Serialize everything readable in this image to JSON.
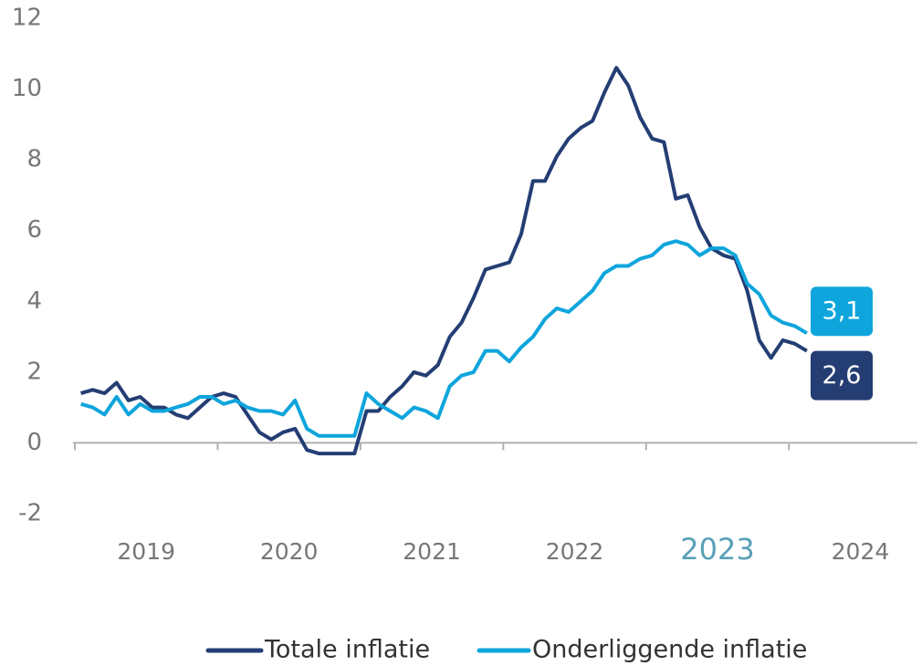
{
  "chart_data": {
    "type": "line",
    "x": [
      2019.042,
      2019.125,
      2019.208,
      2019.292,
      2019.375,
      2019.458,
      2019.542,
      2019.625,
      2019.708,
      2019.792,
      2019.875,
      2019.958,
      2020.042,
      2020.125,
      2020.208,
      2020.292,
      2020.375,
      2020.458,
      2020.542,
      2020.625,
      2020.708,
      2020.792,
      2020.875,
      2020.958,
      2021.042,
      2021.125,
      2021.208,
      2021.292,
      2021.375,
      2021.458,
      2021.542,
      2021.625,
      2021.708,
      2021.792,
      2021.875,
      2021.958,
      2022.042,
      2022.125,
      2022.208,
      2022.292,
      2022.375,
      2022.458,
      2022.542,
      2022.625,
      2022.708,
      2022.792,
      2022.875,
      2022.958,
      2023.042,
      2023.125,
      2023.208,
      2023.292,
      2023.375,
      2023.458,
      2023.542,
      2023.625,
      2023.708,
      2023.792,
      2023.875,
      2023.958,
      2024.042,
      2024.125
    ],
    "series": [
      {
        "name": "Totale inflatie",
        "color": "#243e74",
        "values": [
          1.4,
          1.5,
          1.4,
          1.7,
          1.2,
          1.3,
          1.0,
          1.0,
          0.8,
          0.7,
          1.0,
          1.3,
          1.4,
          1.3,
          0.8,
          0.3,
          0.1,
          0.3,
          0.4,
          -0.2,
          -0.3,
          -0.3,
          -0.3,
          -0.3,
          0.9,
          0.9,
          1.3,
          1.6,
          2.0,
          1.9,
          2.2,
          3.0,
          3.4,
          4.1,
          4.9,
          5.0,
          5.1,
          5.9,
          7.4,
          7.4,
          8.1,
          8.6,
          8.9,
          9.1,
          9.9,
          10.6,
          10.1,
          9.2,
          8.6,
          8.5,
          6.9,
          7.0,
          6.1,
          5.5,
          5.3,
          5.2,
          4.3,
          2.9,
          2.4,
          2.9,
          2.8,
          2.6
        ],
        "value_labels": [
          null,
          null,
          null,
          null,
          null,
          null,
          null,
          null,
          null,
          null,
          null,
          null,
          null,
          null,
          null,
          null,
          null,
          null,
          null,
          null,
          null,
          null,
          null,
          null,
          null,
          null,
          null,
          null,
          null,
          null,
          null,
          null,
          null,
          null,
          null,
          null,
          null,
          null,
          null,
          null,
          null,
          null,
          null,
          null,
          null,
          null,
          null,
          null,
          null,
          null,
          null,
          null,
          null,
          null,
          null,
          null,
          null,
          null,
          null,
          null,
          null,
          "2,6"
        ]
      },
      {
        "name": "Onderliggende inflatie",
        "color": "#0ea5dc",
        "values": [
          1.1,
          1.0,
          0.8,
          1.3,
          0.8,
          1.1,
          0.9,
          0.9,
          1.0,
          1.1,
          1.3,
          1.3,
          1.1,
          1.2,
          1.0,
          0.9,
          0.9,
          0.8,
          1.2,
          0.4,
          0.2,
          0.2,
          0.2,
          0.2,
          1.4,
          1.1,
          0.9,
          0.7,
          1.0,
          0.9,
          0.7,
          1.6,
          1.9,
          2.0,
          2.6,
          2.6,
          2.3,
          2.7,
          3.0,
          3.5,
          3.8,
          3.7,
          4.0,
          4.3,
          4.8,
          5.0,
          5.0,
          5.2,
          5.3,
          5.6,
          5.7,
          5.6,
          5.3,
          5.5,
          5.5,
          5.3,
          4.5,
          4.2,
          3.6,
          3.4,
          3.3,
          3.1
        ],
        "value_labels": [
          null,
          null,
          null,
          null,
          null,
          null,
          null,
          null,
          null,
          null,
          null,
          null,
          null,
          null,
          null,
          null,
          null,
          null,
          null,
          null,
          null,
          null,
          null,
          null,
          null,
          null,
          null,
          null,
          null,
          null,
          null,
          null,
          null,
          null,
          null,
          null,
          null,
          null,
          null,
          null,
          null,
          null,
          null,
          null,
          null,
          null,
          null,
          null,
          null,
          null,
          null,
          null,
          null,
          null,
          null,
          null,
          null,
          null,
          null,
          null,
          null,
          "3,1"
        ]
      }
    ],
    "xlim": [
      2019,
      2024.9
    ],
    "xticks": [
      {
        "value": 2019,
        "label": "2019"
      },
      {
        "value": 2020,
        "label": "2020"
      },
      {
        "value": 2021,
        "label": "2021"
      },
      {
        "value": 2022,
        "label": "2022"
      },
      {
        "value": 2023,
        "label": "2023"
      },
      {
        "value": 2024,
        "label": "2024"
      }
    ],
    "x_highlight": "2023",
    "ylim": [
      -2,
      12
    ],
    "yticks": [
      -2,
      0,
      2,
      4,
      6,
      8,
      10,
      12
    ],
    "grid": false,
    "legend": "bottom"
  }
}
